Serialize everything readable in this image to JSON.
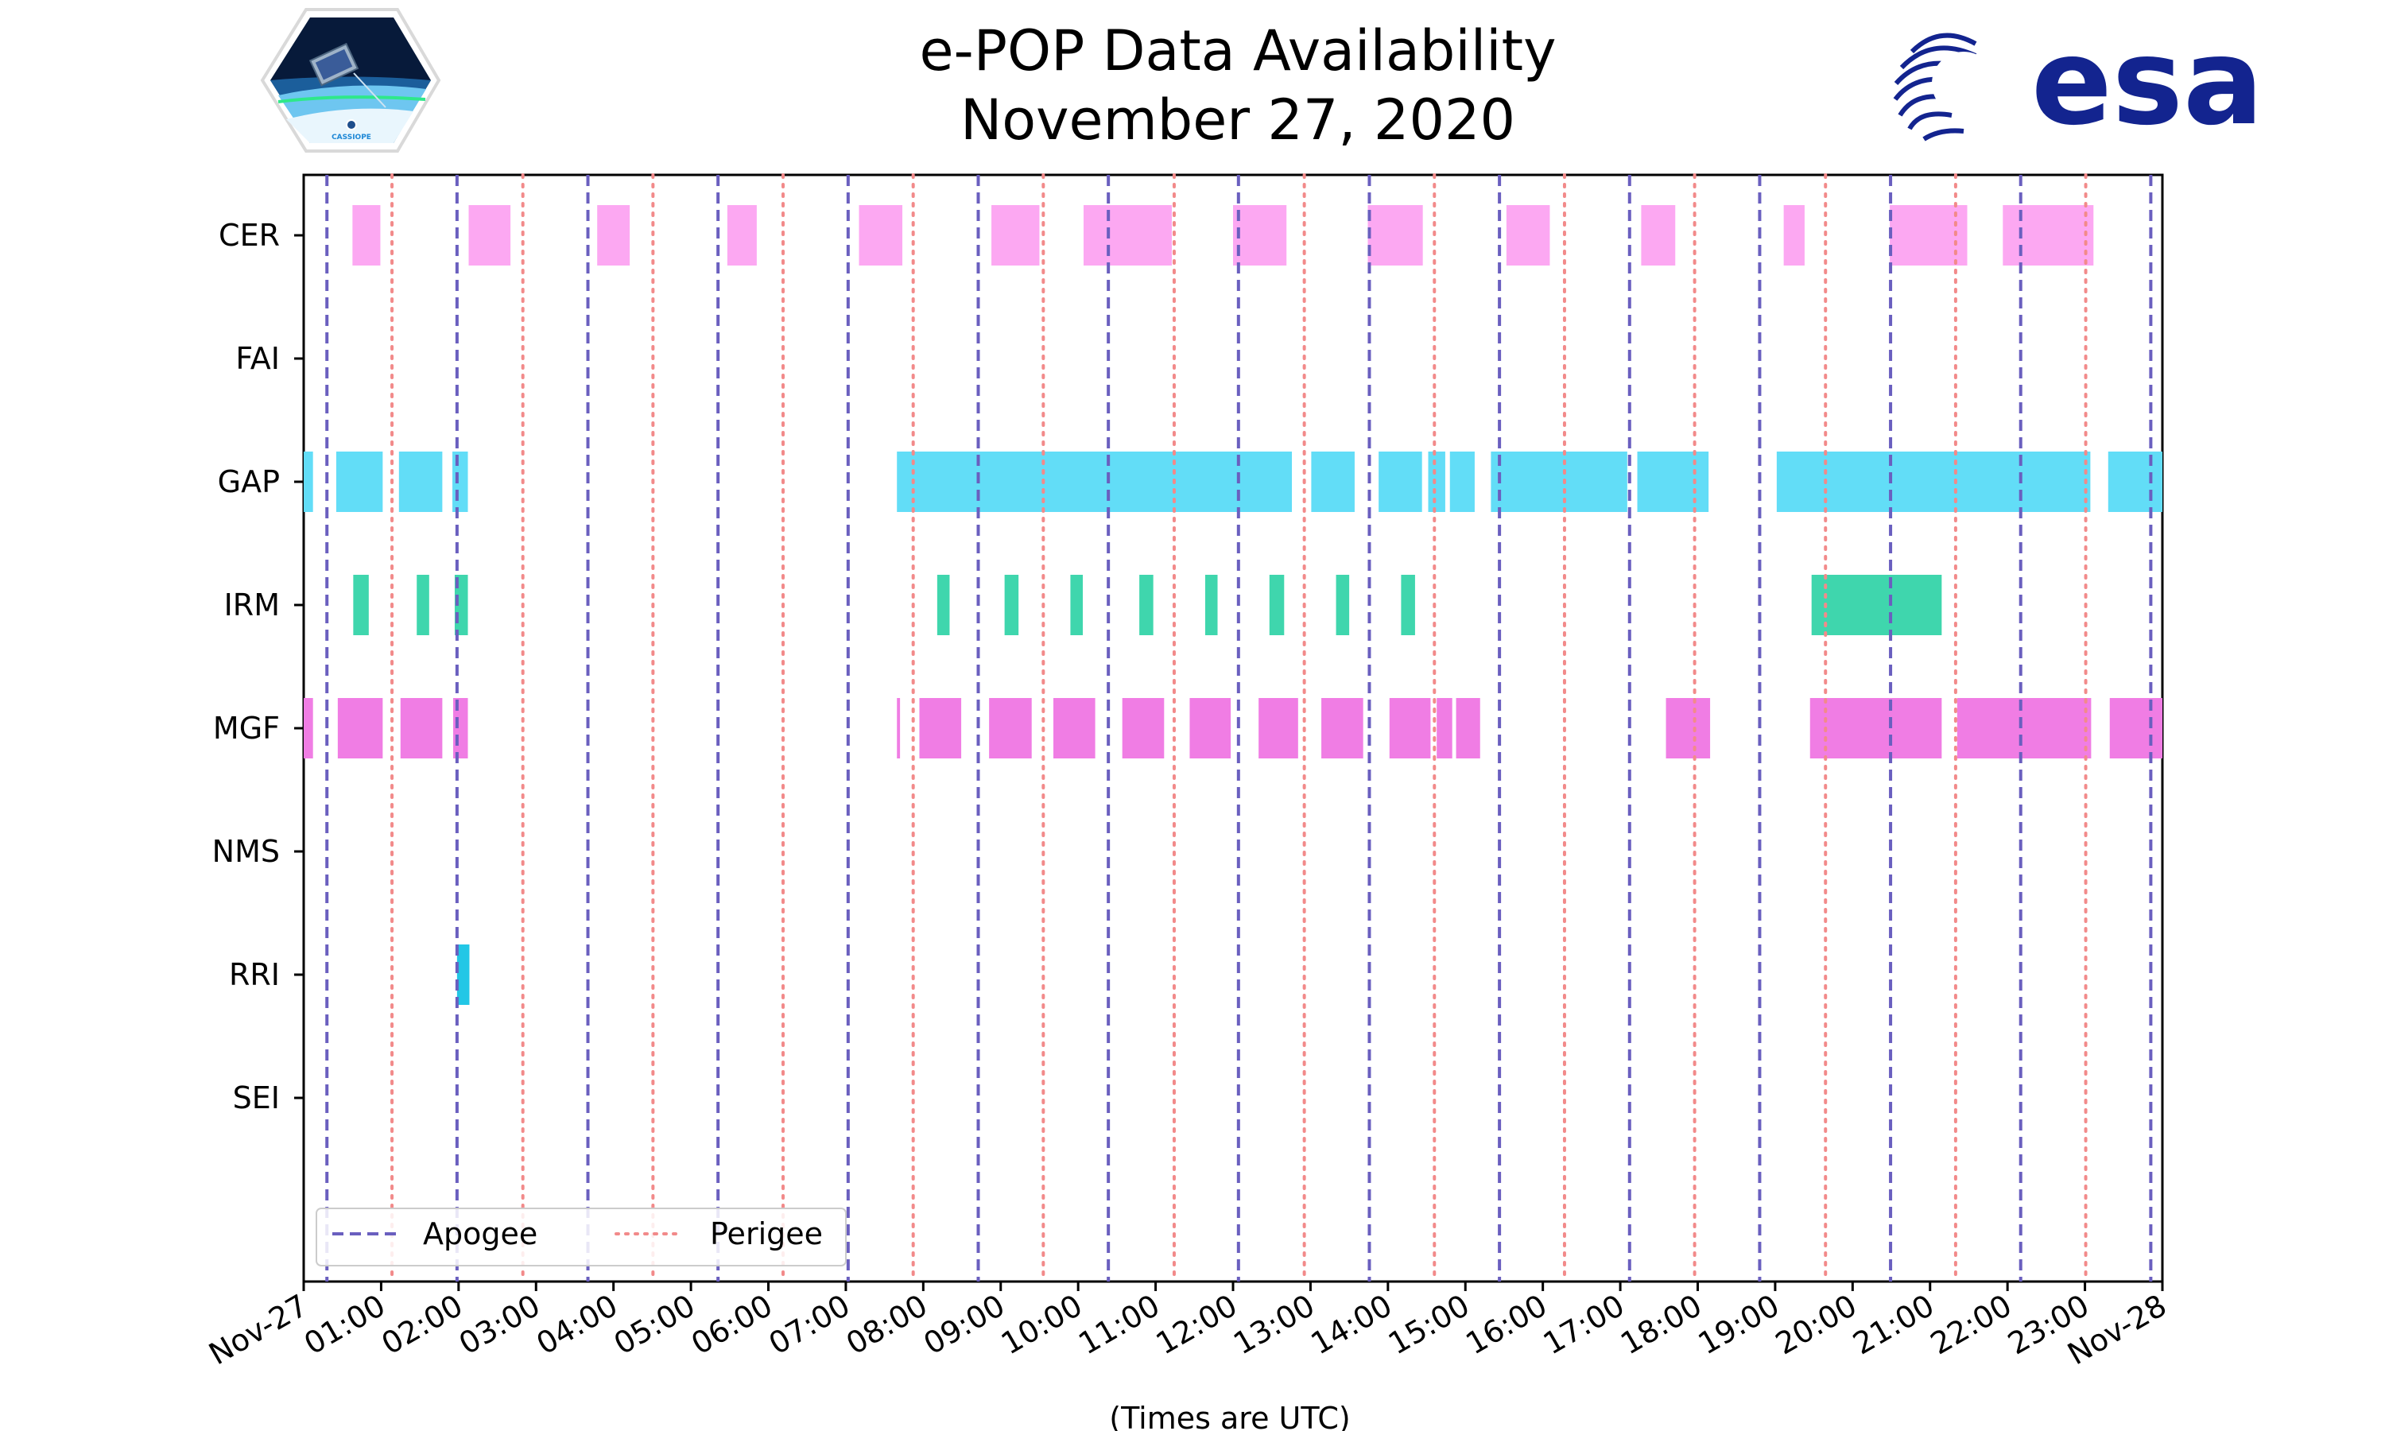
{
  "chart_data": {
    "type": "timeline",
    "title": [
      "e-POP Data Availability",
      "November 27, 2020"
    ],
    "xlabel": "(Times are UTC)",
    "xlim": [
      0,
      24
    ],
    "x_tick_labels": [
      "Nov-27",
      "01:00",
      "02:00",
      "03:00",
      "04:00",
      "05:00",
      "06:00",
      "07:00",
      "08:00",
      "09:00",
      "10:00",
      "11:00",
      "12:00",
      "13:00",
      "14:00",
      "15:00",
      "16:00",
      "17:00",
      "18:00",
      "19:00",
      "20:00",
      "21:00",
      "22:00",
      "23:00",
      "Nov-28"
    ],
    "instruments": [
      "CER",
      "FAI",
      "GAP",
      "IRM",
      "MGF",
      "NMS",
      "RRI",
      "SEI"
    ],
    "colors": {
      "CER": "#fca8f2",
      "GAP": "#62ddf7",
      "IRM": "#3fd6ad",
      "MGF": "#f07de4",
      "RRI": "#22c7e6",
      "apogee": "#6a5fbf",
      "perigee": "#f28a8a"
    },
    "series": [
      {
        "name": "CER",
        "intervals": [
          [
            0.63,
            0.99
          ],
          [
            2.13,
            2.67
          ],
          [
            3.79,
            4.21
          ],
          [
            5.47,
            5.85
          ],
          [
            7.17,
            7.73
          ],
          [
            8.88,
            9.5
          ],
          [
            10.07,
            11.21
          ],
          [
            12.0,
            12.69
          ],
          [
            13.74,
            14.45
          ],
          [
            15.53,
            16.09
          ],
          [
            17.27,
            17.71
          ],
          [
            19.11,
            19.38
          ],
          [
            20.48,
            21.48
          ],
          [
            21.94,
            23.11
          ]
        ]
      },
      {
        "name": "FAI",
        "intervals": []
      },
      {
        "name": "GAP",
        "intervals": [
          [
            0.0,
            0.12
          ],
          [
            0.42,
            1.02
          ],
          [
            1.23,
            1.79
          ],
          [
            1.92,
            2.12
          ],
          [
            7.66,
            12.76
          ],
          [
            13.01,
            13.57
          ],
          [
            13.88,
            14.44
          ],
          [
            14.52,
            14.74
          ],
          [
            14.8,
            15.12
          ],
          [
            15.33,
            17.09
          ],
          [
            17.22,
            18.14
          ],
          [
            19.02,
            23.07
          ],
          [
            23.3,
            24.0
          ]
        ]
      },
      {
        "name": "IRM",
        "intervals": [
          [
            0.64,
            0.84
          ],
          [
            1.46,
            1.62
          ],
          [
            1.95,
            2.12
          ],
          [
            8.18,
            8.34
          ],
          [
            9.05,
            9.23
          ],
          [
            9.9,
            10.06
          ],
          [
            10.79,
            10.97
          ],
          [
            11.64,
            11.8
          ],
          [
            12.47,
            12.66
          ],
          [
            13.33,
            13.5
          ],
          [
            14.17,
            14.35
          ],
          [
            19.47,
            21.15
          ]
        ]
      },
      {
        "name": "MGF",
        "intervals": [
          [
            0.0,
            0.12
          ],
          [
            0.44,
            1.02
          ],
          [
            1.25,
            1.79
          ],
          [
            1.93,
            2.12
          ],
          [
            7.66,
            7.7
          ],
          [
            7.95,
            8.49
          ],
          [
            8.85,
            9.4
          ],
          [
            9.68,
            10.22
          ],
          [
            10.57,
            11.11
          ],
          [
            11.44,
            11.97
          ],
          [
            12.33,
            12.84
          ],
          [
            13.14,
            13.68
          ],
          [
            14.02,
            14.55
          ],
          [
            14.63,
            14.83
          ],
          [
            14.88,
            15.19
          ],
          [
            17.59,
            18.16
          ],
          [
            19.45,
            21.15
          ],
          [
            21.35,
            23.08
          ],
          [
            23.32,
            24.0
          ]
        ]
      },
      {
        "name": "NMS",
        "intervals": []
      },
      {
        "name": "RRI",
        "intervals": [
          [
            1.98,
            2.14
          ]
        ]
      },
      {
        "name": "SEI",
        "intervals": []
      }
    ],
    "apogee_times": [
      0.3,
      1.98,
      3.67,
      5.35,
      7.03,
      8.71,
      10.39,
      12.07,
      13.76,
      15.44,
      17.12,
      18.8,
      20.49,
      22.17,
      23.85
    ],
    "perigee_times": [
      1.14,
      2.83,
      4.51,
      6.19,
      7.87,
      9.55,
      11.24,
      12.92,
      14.6,
      16.28,
      17.96,
      19.65,
      21.33,
      23.01
    ],
    "legend": {
      "position": "bottom-left",
      "entries": [
        "Apogee",
        "Perigee"
      ]
    }
  },
  "logos": {
    "left": {
      "caption": "CASSIOPE"
    },
    "right": {
      "text": "esa",
      "color": "#13248f"
    }
  }
}
